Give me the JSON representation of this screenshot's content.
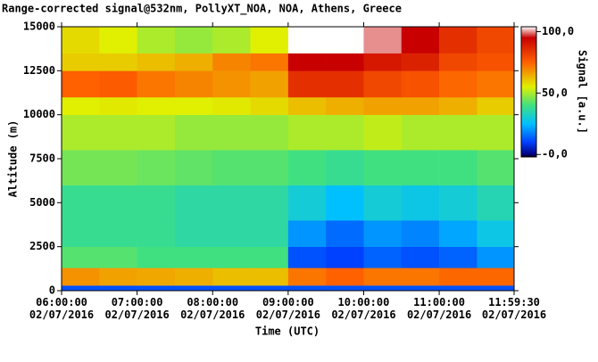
{
  "chart_data": {
    "type": "heatmap",
    "title": "Range-corrected signal@532nm, PollyXT_NOA, NOA, Athens, Greece",
    "x_label": "Time (UTC)",
    "y_label": "Altitude (m)",
    "colorbar_label": "Signal [a.u.]",
    "x_edges": [
      6,
      6.5,
      7,
      7.5,
      8,
      8.5,
      9,
      9.5,
      10,
      10.5,
      11,
      11.5,
      11.9917
    ],
    "y_edges": [
      0,
      300,
      1300,
      2500,
      4000,
      6000,
      8000,
      10000,
      11000,
      12500,
      13500,
      15000
    ],
    "values": [
      [
        12,
        12,
        12,
        12,
        12,
        12,
        12,
        12,
        12,
        12,
        12,
        12
      ],
      [
        68,
        66,
        65,
        64,
        62,
        62,
        72,
        75,
        72,
        72,
        74,
        74
      ],
      [
        42,
        42,
        40,
        40,
        40,
        40,
        12,
        10,
        14,
        12,
        14,
        20
      ],
      [
        38,
        38,
        38,
        36,
        36,
        36,
        20,
        15,
        20,
        18,
        22,
        28
      ],
      [
        38,
        38,
        38,
        36,
        36,
        36,
        30,
        25,
        30,
        28,
        30,
        34
      ],
      [
        45,
        45,
        44,
        43,
        42,
        42,
        40,
        38,
        40,
        40,
        40,
        42
      ],
      [
        50,
        50,
        50,
        48,
        48,
        48,
        50,
        50,
        52,
        50,
        50,
        50
      ],
      [
        55,
        56,
        55,
        55,
        56,
        58,
        62,
        64,
        66,
        66,
        64,
        60
      ],
      [
        75,
        76,
        72,
        70,
        68,
        66,
        85,
        85,
        80,
        78,
        74,
        72
      ],
      [
        60,
        60,
        62,
        64,
        70,
        72,
        95,
        95,
        90,
        88,
        80,
        78
      ],
      [
        58,
        55,
        50,
        48,
        50,
        55,
        105,
        105,
        100,
        95,
        85,
        80
      ]
    ],
    "xlim": [
      6,
      11.9917
    ],
    "xticks": [
      {
        "value": 6,
        "label": "06:00:00\n02/07/2016"
      },
      {
        "value": 7,
        "label": "07:00:00\n02/07/2016"
      },
      {
        "value": 8,
        "label": "08:00:00\n02/07/2016"
      },
      {
        "value": 9,
        "label": "09:00:00\n02/07/2016"
      },
      {
        "value": 10,
        "label": "10:00:00\n02/07/2016"
      },
      {
        "value": 11,
        "label": "11:00:00\n02/07/2016"
      },
      {
        "value": 11.9917,
        "label": "11:59:30\n02/07/2016"
      }
    ],
    "ylim": [
      0,
      15000
    ],
    "yticks": [
      0,
      2500,
      5000,
      7500,
      10000,
      12500,
      15000
    ],
    "clim": [
      -2,
      104
    ],
    "cticks": [
      {
        "value": 100,
        "label": "100,0"
      },
      {
        "value": 50,
        "label": "50,0"
      },
      {
        "value": 0,
        "label": "-0,0"
      }
    ],
    "colorscale": [
      [
        -2,
        "#000000"
      ],
      [
        0,
        "#00007f"
      ],
      [
        10,
        "#0040ff"
      ],
      [
        25,
        "#00c0ff"
      ],
      [
        40,
        "#40e080"
      ],
      [
        55,
        "#e0f000"
      ],
      [
        75,
        "#ff6000"
      ],
      [
        95,
        "#c80000"
      ],
      [
        104,
        "#ffffff"
      ]
    ],
    "over_color": "#ffffff"
  }
}
